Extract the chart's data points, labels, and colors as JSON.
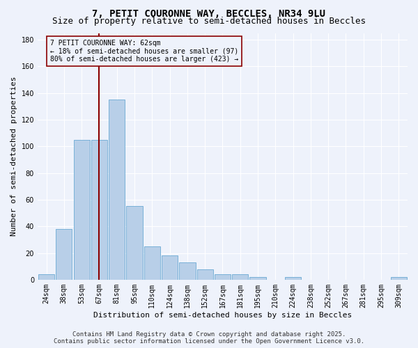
{
  "title": "7, PETIT COURONNE WAY, BECCLES, NR34 9LU",
  "subtitle": "Size of property relative to semi-detached houses in Beccles",
  "xlabel": "Distribution of semi-detached houses by size in Beccles",
  "ylabel": "Number of semi-detached properties",
  "categories": [
    "24sqm",
    "38sqm",
    "53sqm",
    "67sqm",
    "81sqm",
    "95sqm",
    "110sqm",
    "124sqm",
    "138sqm",
    "152sqm",
    "167sqm",
    "181sqm",
    "195sqm",
    "210sqm",
    "224sqm",
    "238sqm",
    "252sqm",
    "267sqm",
    "281sqm",
    "295sqm",
    "309sqm"
  ],
  "values": [
    4,
    38,
    105,
    105,
    135,
    55,
    25,
    18,
    13,
    8,
    4,
    4,
    2,
    0,
    2,
    0,
    0,
    0,
    0,
    0,
    2
  ],
  "bar_color": "#b8cfe8",
  "bar_edge_color": "#6aaad4",
  "property_size_index": 3,
  "property_label": "7 PETIT COURONNE WAY: 62sqm",
  "pct_smaller": "18%",
  "n_smaller": 97,
  "pct_larger": "80%",
  "n_larger": 423,
  "vline_color": "#8b0000",
  "annotation_box_color": "#8b0000",
  "ylim": [
    0,
    185
  ],
  "yticks": [
    0,
    20,
    40,
    60,
    80,
    100,
    120,
    140,
    160,
    180
  ],
  "footer_line1": "Contains HM Land Registry data © Crown copyright and database right 2025.",
  "footer_line2": "Contains public sector information licensed under the Open Government Licence v3.0.",
  "bg_color": "#eef2fb",
  "grid_color": "#ffffff",
  "title_fontsize": 10,
  "subtitle_fontsize": 9,
  "axis_label_fontsize": 8,
  "tick_fontsize": 7,
  "footer_fontsize": 6.5,
  "annot_fontsize": 7
}
